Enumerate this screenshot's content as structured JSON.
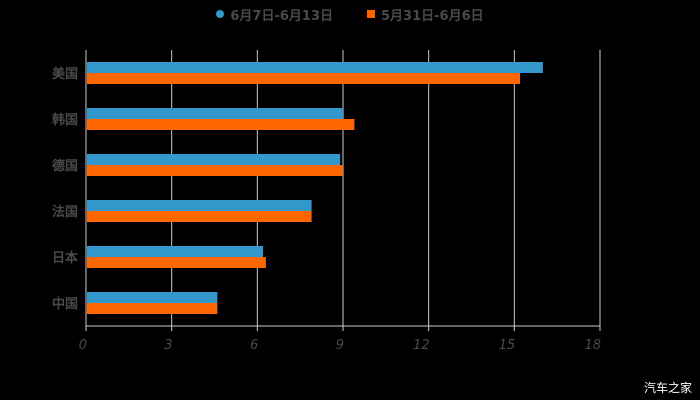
{
  "chart_data": {
    "type": "bar",
    "orientation": "horizontal",
    "title": "",
    "xlabel": "",
    "ylabel": "",
    "categories": [
      "美国",
      "韩国",
      "德国",
      "法国",
      "日本",
      "中国"
    ],
    "series": [
      {
        "name": "6月7日-6月13日",
        "color": "#3399cc",
        "marker": "circle",
        "values": [
          16.0,
          9.0,
          8.9,
          7.9,
          6.2,
          4.6
        ]
      },
      {
        "name": "5月31日-6月6日",
        "color": "#ff6600",
        "marker": "square",
        "values": [
          15.2,
          9.4,
          9.0,
          7.9,
          6.3,
          4.6
        ]
      }
    ],
    "xlim": [
      0,
      18
    ],
    "xticks": [
      0,
      3,
      6,
      9,
      12,
      15,
      18
    ],
    "grid": "vertical",
    "legend_position": "top"
  },
  "legend": {
    "items": [
      {
        "label": "6月7日-6月13日",
        "color": "#3399cc"
      },
      {
        "label": "5月31日-6月6日",
        "color": "#ff6600"
      }
    ]
  },
  "watermark": "汽车之家",
  "colors": {
    "background": "#000000",
    "grid": "#cccccc",
    "label": "#4a4a4a"
  }
}
